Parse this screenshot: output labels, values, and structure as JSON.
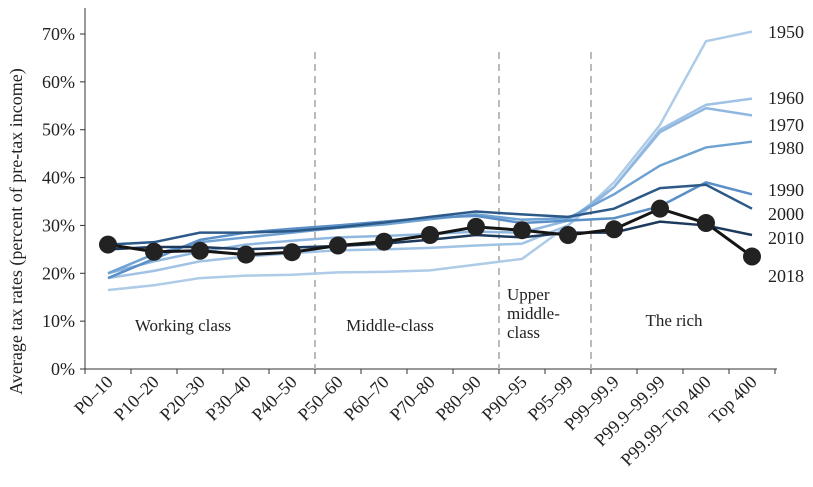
{
  "chart_data": {
    "type": "line",
    "y_label": "Average tax rates (percent of pre-tax income)",
    "categories": [
      "P0–10",
      "P10–20",
      "P20–30",
      "P30–40",
      "P40–50",
      "P50–60",
      "P60–70",
      "P70–80",
      "P80–90",
      "P90–95",
      "P95–99",
      "P99–99.9",
      "P99.9–99.99",
      "P99.99–Top 400",
      "Top 400"
    ],
    "ylim": [
      0,
      70
    ],
    "yticks": [
      {
        "value": 0,
        "label": "0%"
      },
      {
        "value": 10,
        "label": "10%"
      },
      {
        "value": 20,
        "label": "20%"
      },
      {
        "value": 30,
        "label": "30%"
      },
      {
        "value": 40,
        "label": "40%"
      },
      {
        "value": 50,
        "label": "50%"
      },
      {
        "value": 60,
        "label": "60%"
      },
      {
        "value": 70,
        "label": "70%"
      }
    ],
    "regions": [
      {
        "lines": [
          "Working class"
        ]
      },
      {
        "lines": [
          "Middle-class"
        ]
      },
      {
        "lines": [
          "Upper",
          "middle-",
          "class"
        ]
      },
      {
        "lines": [
          "The rich"
        ]
      }
    ],
    "series": [
      {
        "name": "1950",
        "color": "#aecbe8",
        "values": [
          16.5,
          17.5,
          19,
          19.5,
          19.7,
          20.2,
          20.3,
          20.6,
          21.8,
          23,
          30,
          39,
          51,
          68.5,
          70.5
        ]
      },
      {
        "name": "1960",
        "color": "#a0c2e5",
        "values": [
          19,
          20.5,
          22.5,
          23.5,
          24.2,
          24.8,
          25,
          25.3,
          25.8,
          26.2,
          30,
          38,
          50,
          55.2,
          56.5
        ]
      },
      {
        "name": "1970",
        "color": "#8fb7df",
        "values": [
          20,
          22.5,
          24.5,
          26,
          26.8,
          27.5,
          27.8,
          28.2,
          28.7,
          28.5,
          31,
          38,
          49.5,
          54.5,
          53
        ]
      },
      {
        "name": "1980",
        "color": "#6ea2d3",
        "values": [
          20,
          24,
          26.5,
          27.5,
          28.5,
          29.5,
          30.2,
          31.3,
          32.3,
          31.2,
          31.5,
          36.5,
          42.5,
          46.3,
          47.5
        ]
      },
      {
        "name": "1990",
        "color": "#5a8fc7",
        "values": [
          19,
          23,
          27,
          28.5,
          29.3,
          30,
          30.8,
          31.6,
          32,
          30.5,
          31,
          31.5,
          34,
          39,
          36.5
        ]
      },
      {
        "name": "2000",
        "color": "#2c5987",
        "values": [
          26,
          26.5,
          28.5,
          28.5,
          28.8,
          29.6,
          30.6,
          31.8,
          32.9,
          32.3,
          31.8,
          33.5,
          37.8,
          38.5,
          33.5
        ]
      },
      {
        "name": "2010",
        "color": "#1d3a5c",
        "values": [
          25,
          25.5,
          25.5,
          25,
          25.4,
          25.7,
          26.2,
          27,
          28,
          27.5,
          28.5,
          28.5,
          30.8,
          30,
          28
        ]
      },
      {
        "name": "2018",
        "color": "#151515",
        "markers": true,
        "values": [
          26,
          24.5,
          24.7,
          23.9,
          24.4,
          25.8,
          26.6,
          28,
          29.7,
          29,
          28,
          29.2,
          33.5,
          30.5,
          23.5
        ]
      }
    ]
  }
}
